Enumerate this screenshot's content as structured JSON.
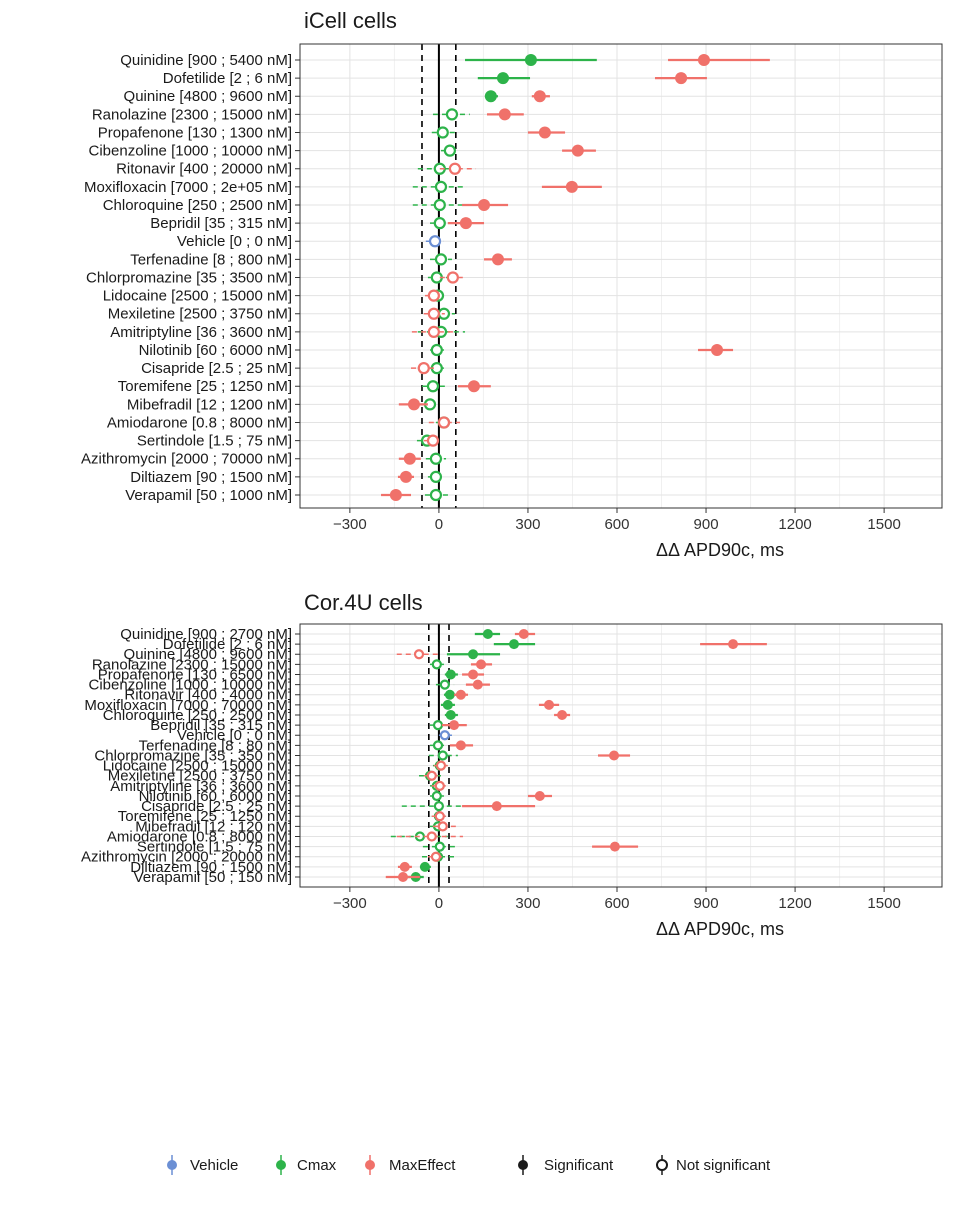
{
  "chart_data": [
    {
      "type": "forest",
      "title": "iCell cells",
      "x_label": "ΔΔ APD90c, ms",
      "categories": [
        "Quinidine [900 ; 5400 nM]",
        "Dofetilide [2 ; 6 nM]",
        "Quinine [4800 ; 9600 nM]",
        "Ranolazine [2300 ; 15000 nM]",
        "Propafenone [130 ; 1300 nM]",
        "Cibenzoline [1000 ; 10000 nM]",
        "Ritonavir [400 ; 20000 nM]",
        "Moxifloxacin [7000 ; 2e+05 nM]",
        "Chloroquine [250 ; 2500 nM]",
        "Bepridil [35 ; 315 nM]",
        "Vehicle [0 ; 0 nM]",
        "Terfenadine [8 ; 800 nM]",
        "Chlorpromazine [35 ; 3500 nM]",
        "Lidocaine [2500 ; 15000 nM]",
        "Mexiletine [2500 ; 3750 nM]",
        "Amitriptyline [36 ; 3600 nM]",
        "Nilotinib [60 ; 6000 nM]",
        "Cisapride [2.5 ; 25 nM]",
        "Toremifene [25 ; 1250 nM]",
        "Mibefradil [12 ; 1200 nM]",
        "Amiodarone [0.8 ; 8000 nM]",
        "Sertindole [1.5 ; 75 nM]",
        "Azithromycin [2000 ; 70000 nM]",
        "Diltiazem [90 ; 1500 nM]",
        "Verapamil [50 ; 1000 nM]"
      ],
      "xlim": [
        -468,
        1695
      ],
      "xticks": [
        {
          "value": -300,
          "label": "−300"
        },
        0,
        300,
        600,
        900,
        1200,
        1500
      ],
      "ref_lines": [
        -57,
        57
      ],
      "grid": true,
      "series": [
        {
          "name": "Vehicle",
          "color": "#6b8fd4",
          "values": [
            null,
            null,
            null,
            null,
            null,
            null,
            null,
            null,
            null,
            null,
            -13,
            null,
            null,
            null,
            null,
            null,
            null,
            null,
            null,
            null,
            null,
            null,
            null,
            null,
            null
          ],
          "lower": [
            null,
            null,
            null,
            null,
            null,
            null,
            null,
            null,
            null,
            null,
            -44,
            null,
            null,
            null,
            null,
            null,
            null,
            null,
            null,
            null,
            null,
            null,
            null,
            null,
            null
          ],
          "upper": [
            null,
            null,
            null,
            null,
            null,
            null,
            null,
            null,
            null,
            null,
            17,
            null,
            null,
            null,
            null,
            null,
            null,
            null,
            null,
            null,
            null,
            null,
            null,
            null,
            null
          ],
          "significant": [
            null,
            null,
            null,
            null,
            null,
            null,
            null,
            null,
            null,
            null,
            false,
            null,
            null,
            null,
            null,
            null,
            null,
            null,
            null,
            null,
            null,
            null,
            null,
            null,
            null
          ]
        },
        {
          "name": "Cmax",
          "color": "#2db34a",
          "values": [
            310,
            216,
            175,
            44,
            13,
            37,
            3,
            7,
            3,
            3,
            null,
            7,
            -7,
            -3,
            17,
            7,
            -7,
            -7,
            -20,
            -30,
            17,
            -40,
            -10,
            -10,
            -10
          ],
          "lower": [
            88,
            131,
            155,
            -20,
            -24,
            7,
            -71,
            -88,
            -88,
            -30,
            null,
            -30,
            -37,
            -30,
            -17,
            -71,
            -30,
            -30,
            -57,
            -57,
            -10,
            -74,
            -44,
            -37,
            -47
          ],
          "upper": [
            532,
            307,
            199,
            104,
            54,
            67,
            78,
            94,
            91,
            44,
            null,
            44,
            27,
            24,
            54,
            88,
            20,
            17,
            20,
            0,
            44,
            -7,
            24,
            17,
            37
          ],
          "significant": [
            true,
            true,
            true,
            false,
            false,
            false,
            false,
            false,
            false,
            false,
            null,
            false,
            false,
            false,
            false,
            false,
            false,
            false,
            false,
            false,
            false,
            false,
            false,
            false,
            false
          ]
        },
        {
          "name": "MaxEffect",
          "color": "#f0716a",
          "values": [
            893,
            816,
            340,
            222,
            357,
            468,
            54,
            448,
            152,
            91,
            null,
            199,
            47,
            -17,
            -17,
            -17,
            937,
            -51,
            118,
            -84,
            17,
            -20,
            -98,
            -111,
            -145
          ],
          "lower": [
            772,
            728,
            313,
            162,
            300,
            415,
            3,
            347,
            78,
            30,
            null,
            152,
            3,
            -47,
            -51,
            -91,
            873,
            -94,
            64,
            -135,
            -34,
            -51,
            -135,
            -138,
            -195
          ],
          "upper": [
            1115,
            903,
            374,
            286,
            425,
            529,
            125,
            549,
            233,
            152,
            null,
            246,
            91,
            13,
            20,
            61,
            991,
            -7,
            175,
            -37,
            71,
            7,
            -61,
            -84,
            -94
          ],
          "significant": [
            true,
            true,
            true,
            true,
            true,
            true,
            false,
            true,
            true,
            true,
            null,
            true,
            false,
            false,
            false,
            false,
            true,
            false,
            true,
            true,
            false,
            false,
            true,
            true,
            true
          ]
        }
      ]
    },
    {
      "type": "forest",
      "title": "Cor.4U cells",
      "x_label": "ΔΔ APD90c, ms",
      "categories": [
        "Quinidine [900 ; 2700 nM]",
        "Dofetilide [2 ; 6 nM]",
        "Quinine [4800 ; 9600 nM]",
        "Ranolazine [2300 ; 15000 nM]",
        "Propafenone [130 ; 6500 nM]",
        "Cibenzoline [1000 ; 10000 nM]",
        "Ritonavir [400 ; 4000 nM]",
        "Moxifloxacin [7000 ; 70000 nM]",
        "Chloroquine [250 ; 2500 nM]",
        "Bepridil [35 ; 315 nM]",
        "Vehicle [0 ; 0 nM]",
        "Terfenadine [8 ; 80 nM]",
        "Chlorpromazine [35 ; 350 nM]",
        "Lidocaine [2500 ; 15000 nM]",
        "Mexiletine [2500 ; 3750 nM]",
        "Amitriptyline [36 ; 3600 nM]",
        "Nilotinib [60 ; 6000 nM]",
        "Cisapride [2.5 ; 25 nM]",
        "Toremifene [25 ; 1250 nM]",
        "Mibefradil [12 ; 120 nM]",
        "Amiodarone [0.8 ; 8000 nM]",
        "Sertindole [1.5 ; 75 nM]",
        "Azithromycin [2000 ; 20000 nM]",
        "Diltiazem [90 ; 1500 nM]",
        "Verapamil [50 ; 150 nM]"
      ],
      "xlim": [
        -468,
        1695
      ],
      "xticks": [
        {
          "value": -300,
          "label": "−300"
        },
        0,
        300,
        600,
        900,
        1200,
        1500
      ],
      "ref_lines": [
        -34,
        34
      ],
      "grid": true,
      "series": [
        {
          "name": "Vehicle",
          "color": "#6b8fd4",
          "values": [
            null,
            null,
            null,
            null,
            null,
            null,
            null,
            null,
            null,
            null,
            20,
            null,
            null,
            null,
            null,
            null,
            null,
            null,
            null,
            null,
            null,
            null,
            null,
            null,
            null
          ],
          "lower": [
            null,
            null,
            null,
            null,
            null,
            null,
            null,
            null,
            null,
            null,
            0,
            null,
            null,
            null,
            null,
            null,
            null,
            null,
            null,
            null,
            null,
            null,
            null,
            null,
            null
          ],
          "upper": [
            null,
            null,
            null,
            null,
            null,
            null,
            null,
            null,
            null,
            null,
            44,
            null,
            null,
            null,
            null,
            null,
            null,
            null,
            null,
            null,
            null,
            null,
            null,
            null,
            null
          ],
          "significant": [
            null,
            null,
            null,
            null,
            null,
            null,
            null,
            null,
            null,
            null,
            false,
            null,
            null,
            null,
            null,
            null,
            null,
            null,
            null,
            null,
            null,
            null,
            null,
            null,
            null
          ]
        },
        {
          "name": "Cmax",
          "color": "#2db34a",
          "values": [
            165,
            253,
            115,
            -7,
            40,
            20,
            37,
            30,
            40,
            -3,
            null,
            -3,
            13,
            3,
            -30,
            -7,
            -7,
            0,
            0,
            -3,
            -64,
            3,
            -3,
            -47,
            -78
          ],
          "lower": [
            121,
            185,
            27,
            -30,
            20,
            -10,
            17,
            7,
            20,
            -30,
            null,
            -30,
            -34,
            -20,
            -67,
            -30,
            -30,
            -125,
            -24,
            -30,
            -162,
            -54,
            -57,
            -64,
            -108
          ],
          "upper": [
            206,
            324,
            206,
            17,
            64,
            51,
            57,
            54,
            64,
            27,
            null,
            27,
            64,
            27,
            7,
            20,
            17,
            121,
            24,
            24,
            30,
            61,
            51,
            -27,
            -51
          ],
          "significant": [
            true,
            true,
            true,
            false,
            true,
            false,
            true,
            true,
            true,
            false,
            null,
            false,
            false,
            false,
            false,
            false,
            false,
            false,
            false,
            false,
            false,
            false,
            false,
            true,
            true
          ]
        },
        {
          "name": "MaxEffect",
          "color": "#f0716a",
          "values": [
            286,
            991,
            -67,
            142,
            115,
            131,
            74,
            371,
            415,
            51,
            null,
            74,
            590,
            7,
            -24,
            3,
            340,
            195,
            3,
            13,
            -24,
            593,
            -10,
            -115,
            -121
          ],
          "lower": [
            256,
            880,
            -142,
            108,
            78,
            91,
            51,
            337,
            388,
            10,
            null,
            37,
            536,
            -17,
            -51,
            -24,
            300,
            78,
            -24,
            -20,
            -142,
            516,
            -37,
            -138,
            -179
          ],
          "upper": [
            324,
            1105,
            7,
            179,
            152,
            172,
            98,
            405,
            442,
            94,
            null,
            115,
            644,
            30,
            3,
            30,
            381,
            324,
            30,
            57,
            81,
            671,
            17,
            -91,
            -64
          ],
          "significant": [
            true,
            true,
            false,
            true,
            true,
            true,
            true,
            true,
            true,
            true,
            null,
            true,
            true,
            false,
            false,
            false,
            true,
            true,
            false,
            false,
            false,
            true,
            false,
            true,
            true
          ]
        }
      ]
    }
  ],
  "legend_shapes": [
    "Significant",
    "Not significant"
  ]
}
